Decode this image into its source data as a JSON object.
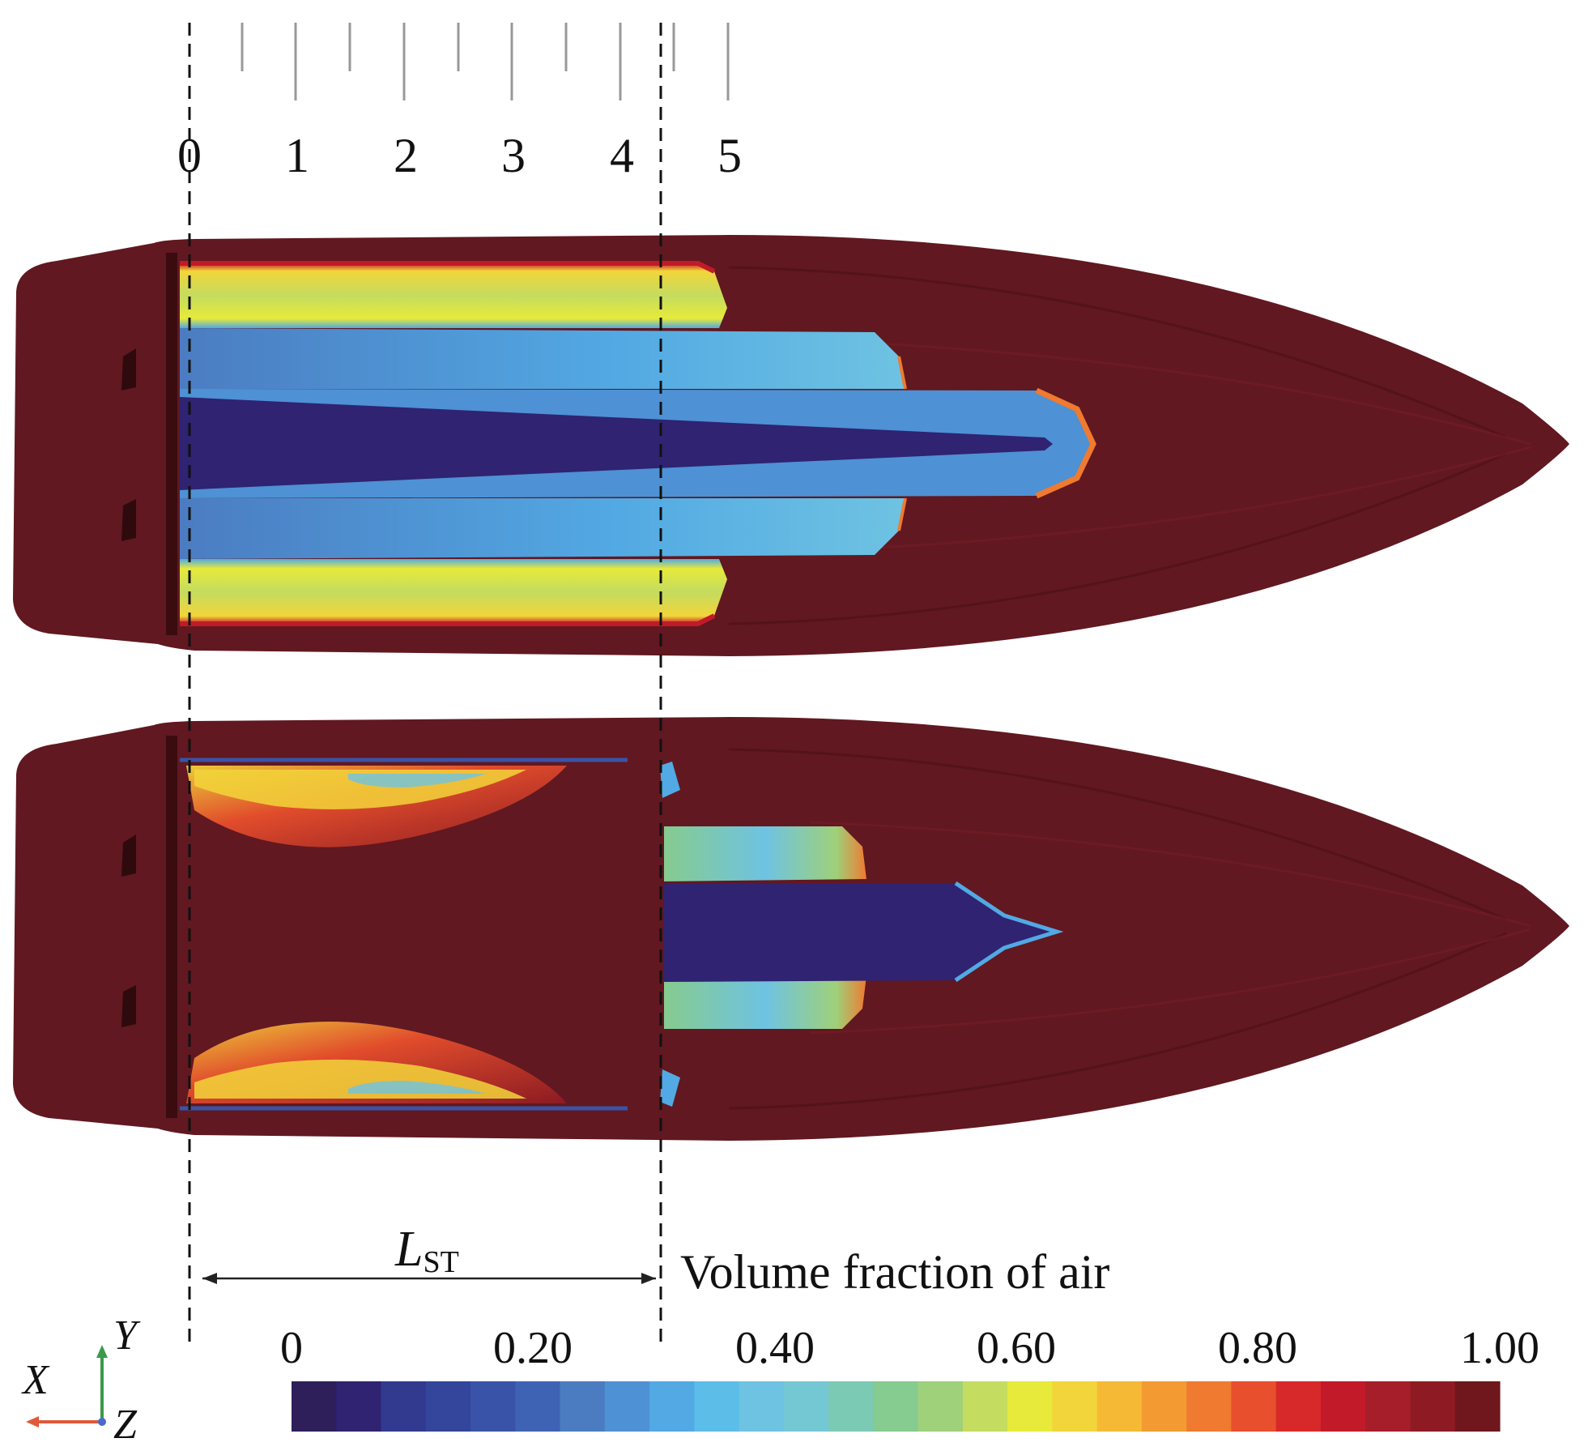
{
  "stations": {
    "labels": [
      "0",
      "1",
      "2",
      "3",
      "4",
      "5"
    ]
  },
  "dimension": {
    "symbol": "L",
    "subscript": "ST"
  },
  "colorbar": {
    "title": "Volume fraction of air",
    "tick_labels": [
      "0",
      "0.20",
      "0.40",
      "0.60",
      "0.80",
      "1.00"
    ],
    "colors": [
      "#2e1e5a",
      "#2f2372",
      "#323a8f",
      "#33469c",
      "#3953a8",
      "#3f63b4",
      "#4b7cc2",
      "#4e91d4",
      "#52a9e3",
      "#5cbde9",
      "#6ec3e2",
      "#74c8d4",
      "#7bcab4",
      "#86cb8f",
      "#9fd07a",
      "#c4dc5f",
      "#e7ea3a",
      "#f2d53a",
      "#f6b935",
      "#f39b32",
      "#ef7a30",
      "#e84f2c",
      "#d7282a",
      "#c21a28",
      "#a61e2a",
      "#8e1b23",
      "#6f171d"
    ]
  },
  "axes_triad": {
    "x": "X",
    "y": "Y",
    "z": "Z",
    "colors": {
      "x": "#e05a3a",
      "y": "#3a9a4a",
      "z": "#4a6ad0"
    }
  },
  "palette": {
    "hull": "#611820",
    "hull_dark": "#4e1117",
    "transom": "#3a0c10"
  }
}
